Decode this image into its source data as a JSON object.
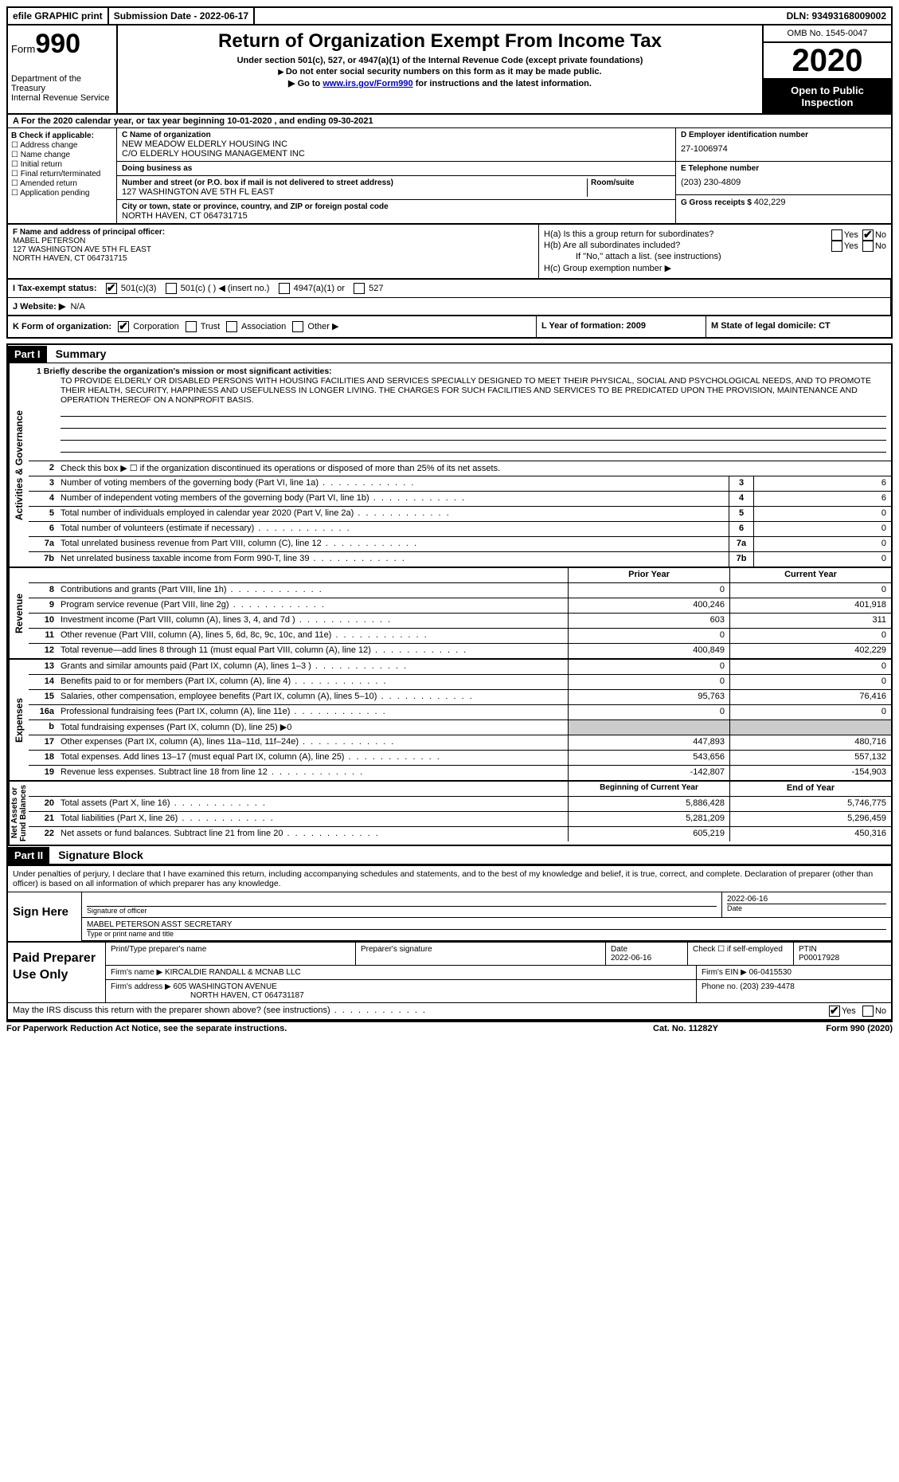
{
  "topbar": {
    "efile": "efile GRAPHIC print",
    "submission": "Submission Date - 2022-06-17",
    "dln": "DLN: 93493168009002"
  },
  "header": {
    "form_label": "Form",
    "form_number": "990",
    "title": "Return of Organization Exempt From Income Tax",
    "subtitle": "Under section 501(c), 527, or 4947(a)(1) of the Internal Revenue Code (except private foundations)",
    "note1": "Do not enter social security numbers on this form as it may be made public.",
    "note2_pre": "Go to ",
    "note2_link": "www.irs.gov/Form990",
    "note2_post": " for instructions and the latest information.",
    "dept": "Department of the Treasury\nInternal Revenue Service",
    "omb": "OMB No. 1545-0047",
    "year": "2020",
    "inspect": "Open to Public Inspection"
  },
  "sectionA": "A  For the 2020 calendar year, or tax year beginning 10-01-2020   , and ending 09-30-2021",
  "colB": {
    "heading": "B Check if applicable:",
    "items": [
      "Address change",
      "Name change",
      "Initial return",
      "Final return/terminated",
      "Amended return",
      "Application pending"
    ]
  },
  "colC": {
    "name_lbl": "C Name of organization",
    "name1": "NEW MEADOW ELDERLY HOUSING INC",
    "name2": "C/O ELDERLY HOUSING MANAGEMENT INC",
    "dba_lbl": "Doing business as",
    "street_lbl": "Number and street (or P.O. box if mail is not delivered to street address)",
    "suite_lbl": "Room/suite",
    "street": "127 WASHINGTON AVE 5TH FL EAST",
    "city_lbl": "City or town, state or province, country, and ZIP or foreign postal code",
    "city": "NORTH HAVEN, CT  064731715"
  },
  "colD": {
    "ein_lbl": "D Employer identification number",
    "ein": "27-1006974",
    "phone_lbl": "E Telephone number",
    "phone": "(203) 230-4809",
    "gross_lbl": "G Gross receipts $",
    "gross": "402,229"
  },
  "colF": {
    "lbl": "F Name and address of principal officer:",
    "name": "MABEL PETERSON",
    "addr1": "127 WASHINGTON AVE 5TH FL EAST",
    "addr2": "NORTH HAVEN, CT  064731715"
  },
  "colH": {
    "ha": "H(a)  Is this a group return for subordinates?",
    "hb": "H(b)  Are all subordinates included?",
    "hb_note": "If \"No,\" attach a list. (see instructions)",
    "hc": "H(c)  Group exemption number ▶",
    "yes": "Yes",
    "no": "No"
  },
  "rowI": {
    "lbl": "I   Tax-exempt status:",
    "o1": "501(c)(3)",
    "o2": "501(c) (  ) ◀ (insert no.)",
    "o3": "4947(a)(1) or",
    "o4": "527"
  },
  "rowJ": {
    "lbl": "J  Website: ▶",
    "val": "N/A"
  },
  "rowK": {
    "lbl": "K Form of organization:",
    "o1": "Corporation",
    "o2": "Trust",
    "o3": "Association",
    "o4": "Other ▶",
    "l": "L Year of formation: 2009",
    "m": "M State of legal domicile: CT"
  },
  "part1": {
    "bar": "Part I",
    "title": "Summary"
  },
  "mission_lbl": "1   Briefly describe the organization's mission or most significant activities:",
  "mission": "TO PROVIDE ELDERLY OR DISABLED PERSONS WITH HOUSING FACILITIES AND SERVICES SPECIALLY DESIGNED TO MEET THEIR PHYSICAL, SOCIAL AND PSYCHOLOGICAL NEEDS, AND TO PROMOTE THEIR HEALTH, SECURITY, HAPPINESS AND USEFULNESS IN LONGER LIVING. THE CHARGES FOR SUCH FACILITIES AND SERVICES TO BE PREDICATED UPON THE PROVISION, MAINTENANCE AND OPERATION THEREOF ON A NONPROFIT BASIS.",
  "line2": "Check this box ▶ ☐  if the organization discontinued its operations or disposed of more than 25% of its net assets.",
  "gov_lines": [
    {
      "n": "3",
      "t": "Number of voting members of the governing body (Part VI, line 1a)",
      "v": "6"
    },
    {
      "n": "4",
      "t": "Number of independent voting members of the governing body (Part VI, line 1b)",
      "v": "6"
    },
    {
      "n": "5",
      "t": "Total number of individuals employed in calendar year 2020 (Part V, line 2a)",
      "v": "0"
    },
    {
      "n": "6",
      "t": "Total number of volunteers (estimate if necessary)",
      "v": "0"
    },
    {
      "n": "7a",
      "t": "Total unrelated business revenue from Part VIII, column (C), line 12",
      "v": "0"
    },
    {
      "n": "7b",
      "t": "Net unrelated business taxable income from Form 990-T, line 39",
      "v": "0"
    }
  ],
  "col_hdr": {
    "prior": "Prior Year",
    "curr": "Current Year"
  },
  "rev_lines": [
    {
      "n": "8",
      "t": "Contributions and grants (Part VIII, line 1h)",
      "p": "0",
      "c": "0"
    },
    {
      "n": "9",
      "t": "Program service revenue (Part VIII, line 2g)",
      "p": "400,246",
      "c": "401,918"
    },
    {
      "n": "10",
      "t": "Investment income (Part VIII, column (A), lines 3, 4, and 7d )",
      "p": "603",
      "c": "311"
    },
    {
      "n": "11",
      "t": "Other revenue (Part VIII, column (A), lines 5, 6d, 8c, 9c, 10c, and 11e)",
      "p": "0",
      "c": "0"
    },
    {
      "n": "12",
      "t": "Total revenue—add lines 8 through 11 (must equal Part VIII, column (A), line 12)",
      "p": "400,849",
      "c": "402,229"
    }
  ],
  "exp_lines": [
    {
      "n": "13",
      "t": "Grants and similar amounts paid (Part IX, column (A), lines 1–3 )",
      "p": "0",
      "c": "0"
    },
    {
      "n": "14",
      "t": "Benefits paid to or for members (Part IX, column (A), line 4)",
      "p": "0",
      "c": "0"
    },
    {
      "n": "15",
      "t": "Salaries, other compensation, employee benefits (Part IX, column (A), lines 5–10)",
      "p": "95,763",
      "c": "76,416"
    },
    {
      "n": "16a",
      "t": "Professional fundraising fees (Part IX, column (A), line 11e)",
      "p": "0",
      "c": "0"
    },
    {
      "n": "b",
      "t": "Total fundraising expenses (Part IX, column (D), line 25) ▶0",
      "p": "",
      "c": "",
      "shade": true
    },
    {
      "n": "17",
      "t": "Other expenses (Part IX, column (A), lines 11a–11d, 11f–24e)",
      "p": "447,893",
      "c": "480,716"
    },
    {
      "n": "18",
      "t": "Total expenses. Add lines 13–17 (must equal Part IX, column (A), line 25)",
      "p": "543,656",
      "c": "557,132"
    },
    {
      "n": "19",
      "t": "Revenue less expenses. Subtract line 18 from line 12",
      "p": "-142,807",
      "c": "-154,903"
    }
  ],
  "na_hdr": {
    "prior": "Beginning of Current Year",
    "curr": "End of Year"
  },
  "na_lines": [
    {
      "n": "20",
      "t": "Total assets (Part X, line 16)",
      "p": "5,886,428",
      "c": "5,746,775"
    },
    {
      "n": "21",
      "t": "Total liabilities (Part X, line 26)",
      "p": "5,281,209",
      "c": "5,296,459"
    },
    {
      "n": "22",
      "t": "Net assets or fund balances. Subtract line 21 from line 20",
      "p": "605,219",
      "c": "450,316"
    }
  ],
  "vtabs": {
    "gov": "Activities & Governance",
    "rev": "Revenue",
    "exp": "Expenses",
    "na": "Net Assets or\nFund Balances"
  },
  "part2": {
    "bar": "Part II",
    "title": "Signature Block"
  },
  "sig_text": "Under penalties of perjury, I declare that I have examined this return, including accompanying schedules and statements, and to the best of my knowledge and belief, it is true, correct, and complete. Declaration of preparer (other than officer) is based on all information of which preparer has any knowledge.",
  "sign": {
    "here": "Sign Here",
    "sig_lbl": "Signature of officer",
    "date": "2022-06-16",
    "date_lbl": "Date",
    "name": "MABEL PETERSON  ASST SECRETARY",
    "name_lbl": "Type or print name and title"
  },
  "prep": {
    "title": "Paid Preparer Use Only",
    "h1": "Print/Type preparer's name",
    "h2": "Preparer's signature",
    "h3": "Date",
    "date": "2022-06-16",
    "h4": "Check ☐ if self-employed",
    "h5": "PTIN",
    "ptin": "P00017928",
    "firm_lbl": "Firm's name    ▶",
    "firm": "KIRCALDIE RANDALL & MCNAB LLC",
    "ein_lbl": "Firm's EIN ▶",
    "ein": "06-0415530",
    "addr_lbl": "Firm's address ▶",
    "addr1": "605 WASHINGTON AVENUE",
    "addr2": "NORTH HAVEN, CT  064731187",
    "phone_lbl": "Phone no.",
    "phone": "(203) 239-4478"
  },
  "footer": {
    "discuss": "May the IRS discuss this return with the preparer shown above? (see instructions)",
    "yes": "Yes",
    "no": "No",
    "paperwork": "For Paperwork Reduction Act Notice, see the separate instructions.",
    "cat": "Cat. No. 11282Y",
    "form": "Form 990 (2020)"
  }
}
